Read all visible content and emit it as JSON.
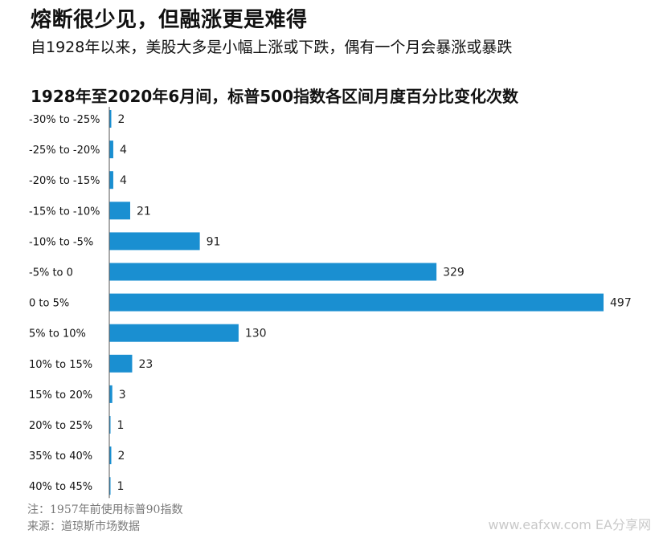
{
  "header": {
    "headline": "熔断很少见，但融涨更是难得",
    "subhead": "自1928年以来，美股大多是小幅上涨或下跌，偶有一个月会暴涨或暴跌"
  },
  "footer": {
    "note": "注：1957年前使用标普90指数",
    "source": "来源：道琼斯市场数据",
    "watermark": "www.eafxw.com  EA分享网"
  },
  "colors": {
    "bar": "#1a8fd1",
    "axis": "#555555"
  },
  "chart_data": {
    "type": "bar",
    "orientation": "horizontal",
    "title": "1928年至2020年6月间，标普500指数各区间月度百分比变化次数",
    "categories": [
      "-30% to -25%",
      "-25% to -20%",
      "-20% to -15%",
      "-15% to -10%",
      "-10% to -5%",
      "-5% to 0",
      "0 to 5%",
      "5% to 10%",
      "10% to 15%",
      "15% to 20%",
      "20% to 25%",
      "35% to 40%",
      "40% to 45%"
    ],
    "values": [
      2,
      4,
      4,
      21,
      91,
      329,
      497,
      130,
      23,
      3,
      1,
      2,
      1
    ],
    "xlim": [
      0,
      497
    ],
    "grid": false,
    "legend": "none",
    "data_labels": true
  }
}
